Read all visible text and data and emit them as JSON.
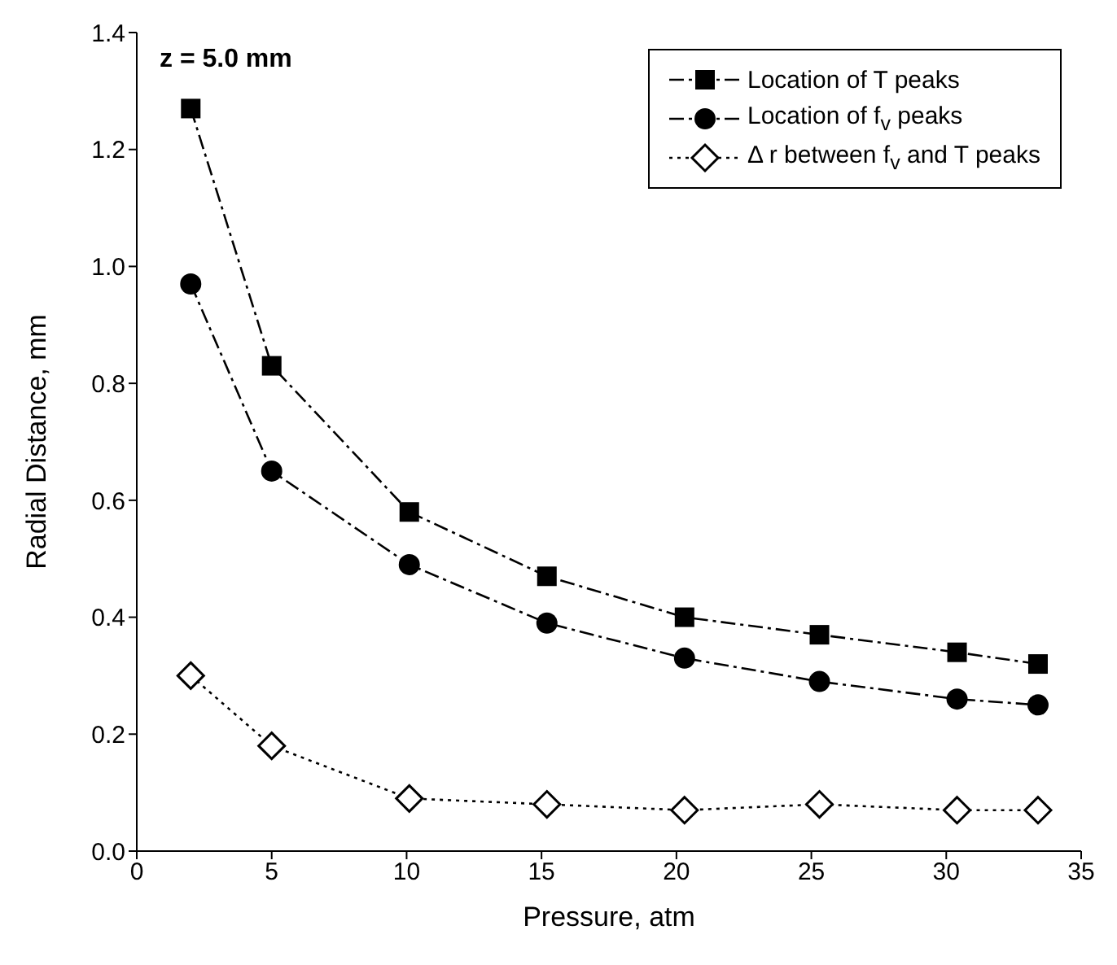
{
  "chart_data": {
    "type": "line",
    "xlabel": "Pressure, atm",
    "ylabel": "Radial Distance, mm",
    "x": [
      2,
      5,
      10.1,
      15.2,
      20.3,
      25.3,
      30.4,
      33.4
    ],
    "series": [
      {
        "name": "Location of T peaks",
        "color": "#000000",
        "marker": "square",
        "line_style": "dashed",
        "values": [
          1.27,
          0.83,
          0.58,
          0.47,
          0.4,
          0.37,
          0.34,
          0.32
        ]
      },
      {
        "name": "Location of f$_{v}$ peaks",
        "color": "#000000",
        "marker": "circle",
        "line_style": "dashed",
        "values": [
          0.97,
          0.65,
          0.49,
          0.39,
          0.33,
          0.29,
          0.26,
          0.25
        ]
      },
      {
        "name": "Δ r between f$_{v}$ and T peaks",
        "color": "#000000",
        "marker": "diamond",
        "line_style": "dotted",
        "values": [
          0.3,
          0.18,
          0.09,
          0.08,
          0.07,
          0.08,
          0.07,
          0.07
        ]
      }
    ],
    "xlim": [
      0,
      35
    ],
    "xticks": [
      0,
      5,
      10,
      15,
      20,
      25,
      30,
      35
    ],
    "ylim": [
      0,
      1.4
    ],
    "yticks": [
      {
        "value": 0,
        "label": "0.0"
      },
      {
        "value": 0.2,
        "label": "0.2"
      },
      {
        "value": 0.4,
        "label": "0.4"
      },
      {
        "value": 0.6,
        "label": "0.6"
      },
      {
        "value": 0.8,
        "label": "0.8"
      },
      {
        "value": 1.0,
        "label": "1.0"
      },
      {
        "value": 1.2,
        "label": "1.2"
      },
      {
        "value": 1.4,
        "label": "1.4"
      }
    ],
    "annotations": [
      "z = 5.0 mm"
    ],
    "legend": "top right",
    "grid": false
  }
}
